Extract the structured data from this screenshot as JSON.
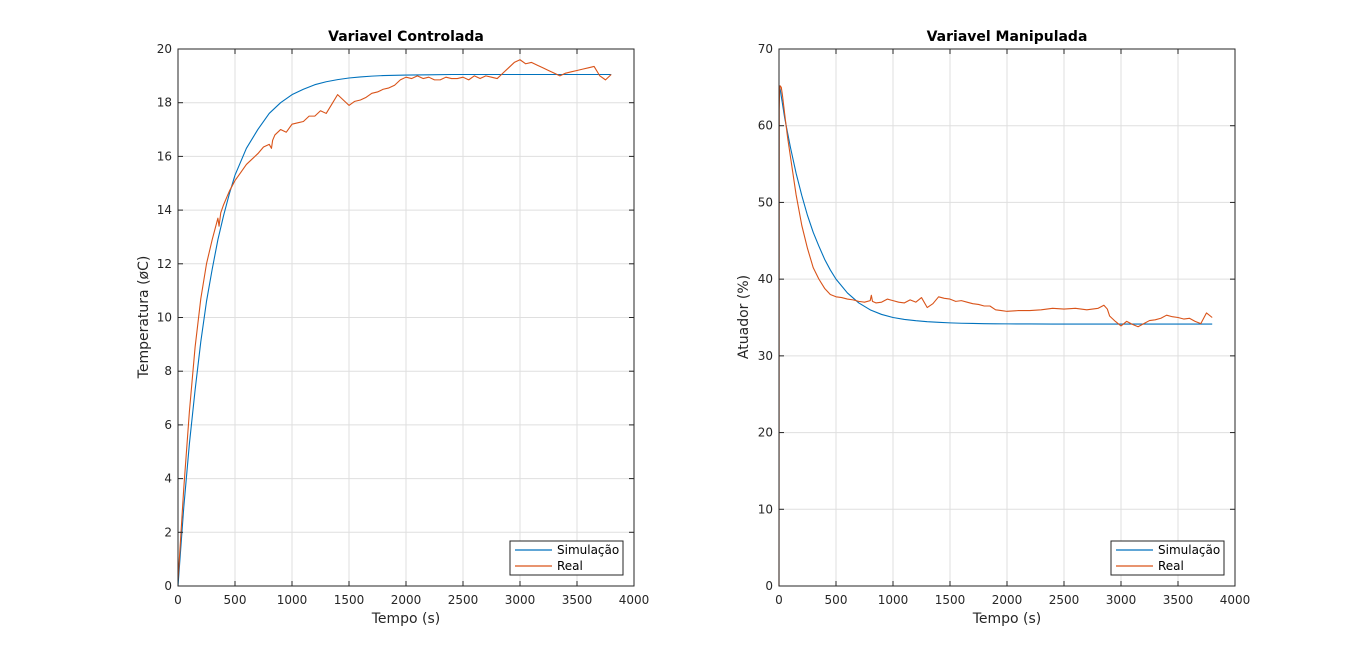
{
  "chart_data": [
    {
      "type": "line",
      "title": "Variavel Controlada",
      "xlabel": "Tempo (s)",
      "ylabel": "Temperatura (øC)",
      "xlim": [
        0,
        4000
      ],
      "ylim": [
        0,
        20
      ],
      "xticks": [
        0,
        500,
        1000,
        1500,
        2000,
        2500,
        3000,
        3500,
        4000
      ],
      "yticks": [
        0,
        2,
        4,
        6,
        8,
        10,
        12,
        14,
        16,
        18,
        20
      ],
      "grid": true,
      "legend_position": "bottom-right",
      "series": [
        {
          "name": "Simulação",
          "color": "#0072BD",
          "x": [
            0,
            50,
            100,
            150,
            200,
            250,
            300,
            350,
            400,
            450,
            500,
            600,
            700,
            800,
            900,
            1000,
            1100,
            1200,
            1300,
            1400,
            1500,
            1600,
            1700,
            1800,
            1900,
            2000,
            2200,
            2400,
            2600,
            2800,
            3000,
            3200,
            3400,
            3600,
            3800
          ],
          "y": [
            0,
            2.9,
            5.3,
            7.3,
            9.1,
            10.6,
            11.8,
            12.9,
            13.8,
            14.6,
            15.3,
            16.3,
            17.0,
            17.6,
            18.0,
            18.3,
            18.5,
            18.67,
            18.78,
            18.86,
            18.92,
            18.96,
            18.99,
            19.01,
            19.02,
            19.03,
            19.04,
            19.05,
            19.05,
            19.05,
            19.05,
            19.05,
            19.05,
            19.05,
            19.05
          ]
        },
        {
          "name": "Real",
          "color": "#D95319",
          "x": [
            0,
            50,
            100,
            150,
            200,
            250,
            300,
            350,
            360,
            375,
            400,
            450,
            500,
            550,
            600,
            650,
            700,
            750,
            800,
            820,
            830,
            850,
            900,
            950,
            1000,
            1050,
            1100,
            1150,
            1200,
            1250,
            1300,
            1350,
            1400,
            1450,
            1500,
            1550,
            1600,
            1650,
            1700,
            1750,
            1800,
            1850,
            1900,
            1950,
            2000,
            2050,
            2100,
            2150,
            2200,
            2250,
            2300,
            2350,
            2400,
            2450,
            2500,
            2550,
            2600,
            2650,
            2700,
            2750,
            2800,
            2850,
            2900,
            2950,
            3000,
            3050,
            3100,
            3150,
            3200,
            3250,
            3300,
            3350,
            3400,
            3450,
            3500,
            3550,
            3600,
            3650,
            3700,
            3750,
            3800
          ],
          "y": [
            0.2,
            3.6,
            6.5,
            8.9,
            10.7,
            12.0,
            12.9,
            13.7,
            13.4,
            13.9,
            14.2,
            14.7,
            15.1,
            15.4,
            15.7,
            15.9,
            16.1,
            16.35,
            16.45,
            16.3,
            16.6,
            16.8,
            17.0,
            16.9,
            17.2,
            17.25,
            17.3,
            17.5,
            17.5,
            17.7,
            17.6,
            17.95,
            18.3,
            18.1,
            17.9,
            18.05,
            18.1,
            18.2,
            18.35,
            18.4,
            18.5,
            18.55,
            18.65,
            18.85,
            18.95,
            18.9,
            19.0,
            18.9,
            18.95,
            18.85,
            18.85,
            18.95,
            18.9,
            18.9,
            18.95,
            18.85,
            19.0,
            18.9,
            19.0,
            18.95,
            18.9,
            19.1,
            19.3,
            19.5,
            19.6,
            19.45,
            19.5,
            19.4,
            19.3,
            19.2,
            19.1,
            19.0,
            19.1,
            19.15,
            19.2,
            19.25,
            19.3,
            19.35,
            19.0,
            18.85,
            19.05
          ]
        }
      ]
    },
    {
      "type": "line",
      "title": "Variavel Manipulada",
      "xlabel": "Tempo (s)",
      "ylabel": "Atuador (%)",
      "xlim": [
        0,
        4000
      ],
      "ylim": [
        0,
        70
      ],
      "xticks": [
        0,
        500,
        1000,
        1500,
        2000,
        2500,
        3000,
        3500,
        4000
      ],
      "yticks": [
        0,
        10,
        20,
        30,
        40,
        50,
        60,
        70
      ],
      "grid": true,
      "legend_position": "bottom-right",
      "series": [
        {
          "name": "Simulação",
          "color": "#0072BD",
          "x": [
            0,
            10,
            50,
            100,
            150,
            200,
            250,
            300,
            350,
            400,
            450,
            500,
            600,
            700,
            800,
            900,
            1000,
            1100,
            1200,
            1300,
            1400,
            1500,
            1600,
            1700,
            1800,
            1900,
            2000,
            2200,
            2400,
            2600,
            2800,
            3000,
            3200,
            3400,
            3600,
            3800
          ],
          "y": [
            65.3,
            64.8,
            61.0,
            57.2,
            53.8,
            50.9,
            48.3,
            46.1,
            44.3,
            42.6,
            41.2,
            40.0,
            38.2,
            36.9,
            36.0,
            35.4,
            35.0,
            34.75,
            34.58,
            34.45,
            34.37,
            34.3,
            34.25,
            34.22,
            34.2,
            34.18,
            34.17,
            34.16,
            34.15,
            34.15,
            34.15,
            34.15,
            34.15,
            34.15,
            34.15,
            34.15
          ]
        },
        {
          "name": "Real",
          "color": "#D95319",
          "x": [
            0,
            2,
            5,
            10,
            20,
            30,
            50,
            75,
            100,
            150,
            200,
            250,
            300,
            350,
            400,
            450,
            500,
            550,
            600,
            650,
            700,
            750,
            800,
            810,
            820,
            850,
            900,
            950,
            1000,
            1050,
            1100,
            1150,
            1200,
            1250,
            1300,
            1350,
            1400,
            1450,
            1500,
            1550,
            1600,
            1650,
            1700,
            1750,
            1800,
            1850,
            1900,
            1950,
            2000,
            2100,
            2200,
            2300,
            2400,
            2500,
            2600,
            2700,
            2800,
            2850,
            2880,
            2900,
            2950,
            3000,
            3050,
            3100,
            3150,
            3200,
            3250,
            3300,
            3350,
            3400,
            3450,
            3500,
            3550,
            3600,
            3650,
            3700,
            3750,
            3800
          ],
          "y": [
            0,
            62.0,
            64.5,
            65.2,
            65.0,
            64.0,
            61.5,
            58.5,
            56.0,
            51.0,
            47.0,
            44.0,
            41.5,
            40.0,
            38.8,
            38.0,
            37.7,
            37.6,
            37.4,
            37.3,
            37.1,
            37.0,
            37.2,
            37.9,
            37.1,
            36.9,
            37.0,
            37.4,
            37.2,
            37.0,
            36.9,
            37.3,
            37.0,
            37.6,
            36.3,
            36.8,
            37.7,
            37.5,
            37.4,
            37.1,
            37.2,
            37.0,
            36.8,
            36.7,
            36.5,
            36.5,
            36.0,
            35.9,
            35.8,
            35.9,
            35.9,
            36.0,
            36.2,
            36.1,
            36.2,
            36.0,
            36.2,
            36.6,
            36.1,
            35.2,
            34.5,
            33.9,
            34.5,
            34.1,
            33.8,
            34.2,
            34.6,
            34.7,
            34.9,
            35.3,
            35.1,
            35.0,
            34.8,
            34.9,
            34.5,
            34.2,
            35.6,
            35.0
          ]
        }
      ]
    }
  ]
}
